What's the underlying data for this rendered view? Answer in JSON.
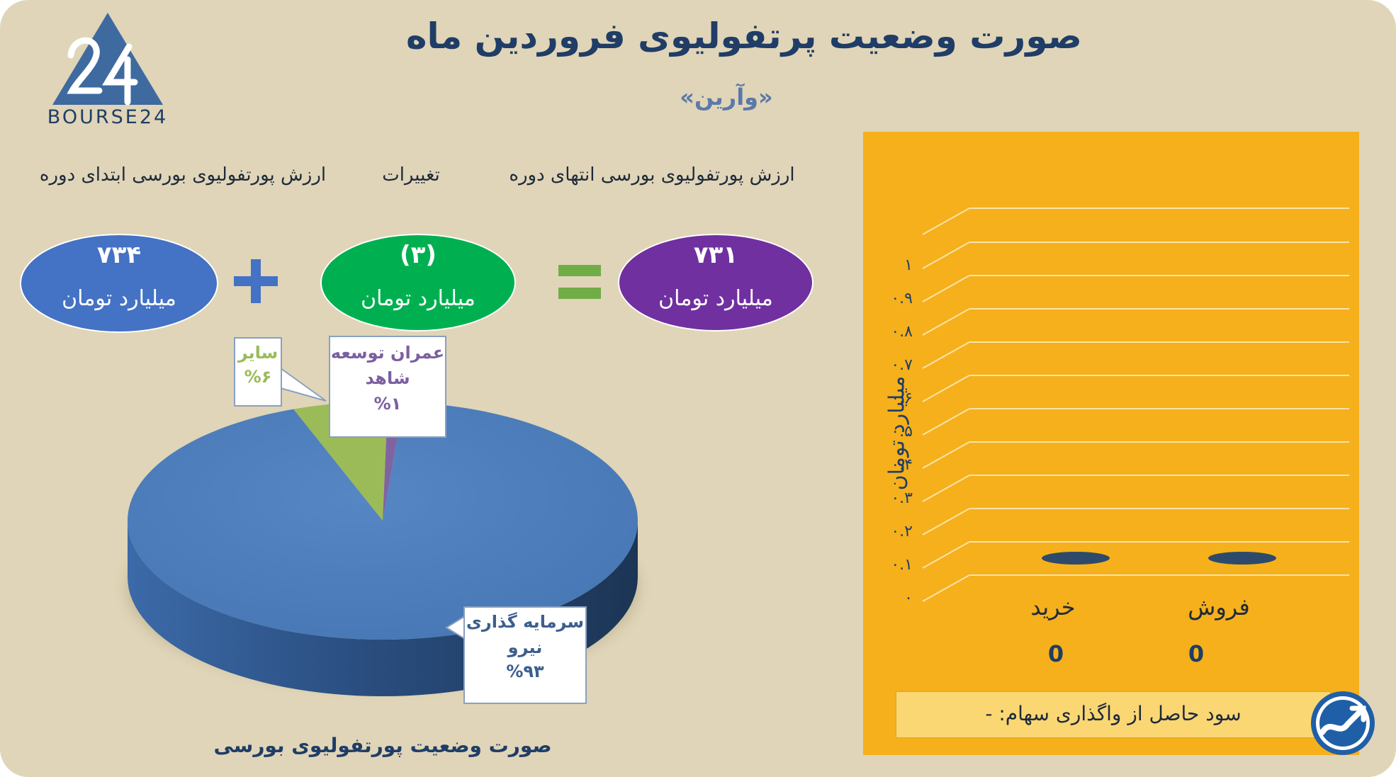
{
  "header": {
    "title": "صورت وضعیت پرتفولیوی فروردین ماه",
    "subtitle": "«وآرین»",
    "logo_text": "BOURSE24"
  },
  "summary": {
    "start_label": "ارزش پورتفولیوی بورسی ابتدای دوره",
    "change_label": "تغییرات",
    "end_label": "ارزش پورتفولیوی بورسی انتهای دوره",
    "start_value": "۷۳۴",
    "change_value": "(۳)",
    "end_value": "۷۳۱",
    "unit": "میلیارد تومان",
    "colors": {
      "start": "#4472c4",
      "change": "#00b050",
      "end": "#7030a0",
      "plus": "#4472c4",
      "equals": "#70ad47"
    }
  },
  "chart_data": [
    {
      "type": "pie",
      "title": "صورت وضعیت پورتفولیوی بورسی",
      "slices": [
        {
          "label": "سرمایه گذاری نیرو",
          "label_lines": [
            "سرمایه گذاری",
            "نیرو"
          ],
          "percent_label": "%۹۳",
          "value": 93,
          "color": "#4f81bd",
          "text_color": "#3b5f8e"
        },
        {
          "label": "سایر",
          "label_lines": [
            "سایر"
          ],
          "percent_label": "%۶",
          "value": 6,
          "color": "#9bbb59",
          "text_color": "#9bbb59"
        },
        {
          "label": "عمران توسعه شاهد",
          "label_lines": [
            "عمران توسعه",
            "شاهد"
          ],
          "percent_label": "%۱",
          "value": 1,
          "color": "#8064a2",
          "text_color": "#7b5fa0"
        }
      ]
    },
    {
      "type": "bar",
      "categories": [
        "خرید",
        "فروش"
      ],
      "values": [
        0,
        0
      ],
      "value_labels": [
        "0",
        "0"
      ],
      "ylabel": "میلیارد تومان",
      "ylim": [
        0,
        1
      ],
      "yticks": [
        "۰",
        "۰.۱",
        "۰.۲",
        "۰.۳",
        "۰.۴",
        "۰.۵",
        "۰.۶",
        "۰.۷",
        "۰.۸",
        "۰.۹",
        "۱"
      ],
      "grid": true,
      "bar_color": "#2e4a6b",
      "background": "#f5b01c"
    }
  ],
  "footer": {
    "profit_text": "سود حاصل از واگذاری سهام: -"
  }
}
